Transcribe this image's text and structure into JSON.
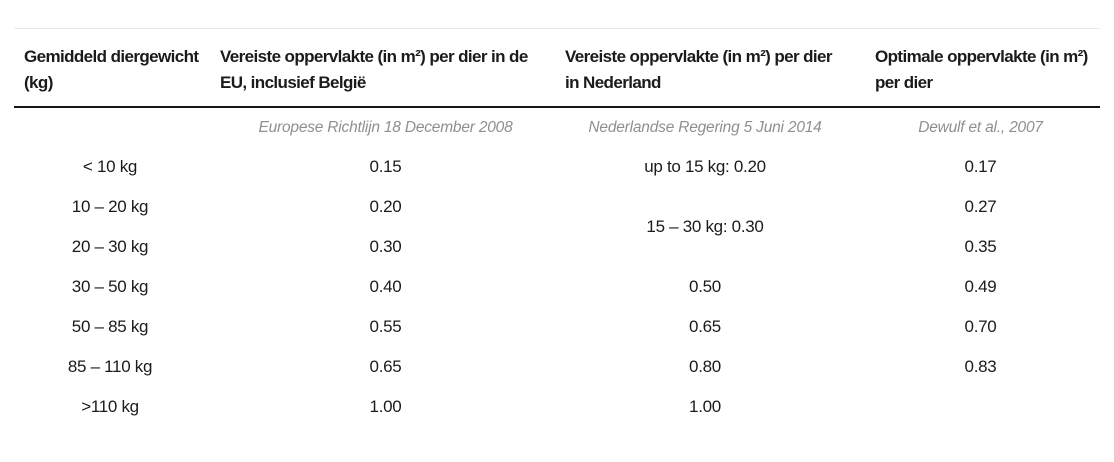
{
  "palette": {
    "background": "#ffffff",
    "text": "#1b1b1b",
    "source_text": "#8f8f8f",
    "header_rule": "#141414",
    "top_rule": "#e9e9e9"
  },
  "table": {
    "headers": {
      "weight": "Gemiddeld diergewicht (kg)",
      "eu": "Vereiste oppervlakte (in m²) per dier in de EU, inclusief België",
      "nl": "Vereiste oppervlakte (in m²) per dier in Nederland",
      "optimal": "Optimale oppervlakte (in m²) per dier"
    },
    "sources": {
      "eu": "Europese Richtlijn 18 December 2008",
      "nl": "Nederlandse Regering 5 Juni 2014",
      "optimal": "Dewulf et al., 2007"
    },
    "rows": [
      {
        "weight": "< 10 kg",
        "eu": "0.15",
        "nl": "up to 15 kg: 0.20",
        "optimal": "0.17"
      },
      {
        "weight": "10 – 20 kg",
        "eu": "0.20",
        "nl": "15 – 30 kg: 0.30",
        "optimal": "0.27"
      },
      {
        "weight": "20 – 30 kg",
        "eu": "0.30",
        "optimal": "0.35"
      },
      {
        "weight": "30 – 50 kg",
        "eu": "0.40",
        "nl": "0.50",
        "optimal": "0.49"
      },
      {
        "weight": "50 – 85 kg",
        "eu": "0.55",
        "nl": "0.65",
        "optimal": "0.70"
      },
      {
        "weight": "85 – 110 kg",
        "eu": "0.65",
        "nl": "0.80",
        "optimal": "0.83"
      },
      {
        "weight": ">110 kg",
        "eu": "1.00",
        "nl": "1.00",
        "optimal": ""
      }
    ]
  }
}
